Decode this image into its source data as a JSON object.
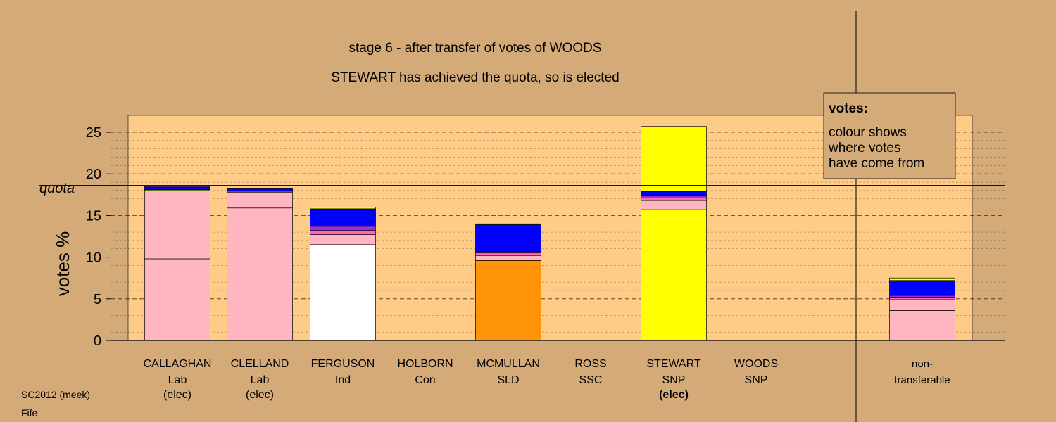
{
  "titles": {
    "line1": "stage 6 - after transfer of votes of WOODS",
    "line2": "STEWART has achieved the quota, so is elected"
  },
  "legend": {
    "heading": "votes:",
    "lines": [
      "colour shows",
      "where votes",
      "have come from"
    ]
  },
  "footer": {
    "line1": "SC2012 (meek)",
    "line2": "Fife"
  },
  "colors": {
    "background": "#D4AA78",
    "plot": "#FFCC88",
    "Lab": "#FFB6C1",
    "Ind": "#FFFFFF",
    "SLD": "#FF9408",
    "SNP": "#FFFF00",
    "Con": "#0000FF",
    "SSC": "#9932CC",
    "other": "#FF69B4"
  },
  "chart_data": {
    "type": "bar",
    "stacked": true,
    "ylabel": "votes %",
    "ylim": [
      0,
      27
    ],
    "yticks": [
      0,
      5,
      10,
      15,
      20,
      25
    ],
    "grid": "dashed",
    "quota": {
      "label": "quota",
      "value": 18.6
    },
    "categories": [
      {
        "name": "CALLAGHAN",
        "party": "Lab",
        "status": "(elec)",
        "bold": false
      },
      {
        "name": "CLELLAND",
        "party": "Lab",
        "status": "(elec)",
        "bold": false
      },
      {
        "name": "FERGUSON",
        "party": "Ind",
        "status": "",
        "bold": false
      },
      {
        "name": "HOLBORN",
        "party": "Con",
        "status": "",
        "bold": false
      },
      {
        "name": "MCMULLAN",
        "party": "SLD",
        "status": "",
        "bold": false
      },
      {
        "name": "ROSS",
        "party": "SSC",
        "status": "",
        "bold": false
      },
      {
        "name": "STEWART",
        "party": "SNP",
        "status": "(elec)",
        "bold": true
      },
      {
        "name": "WOODS",
        "party": "SNP",
        "status": "",
        "bold": false
      },
      {
        "name": "non-",
        "party": "transferable",
        "status": "",
        "bold": false
      }
    ],
    "stacks": [
      [
        {
          "v": 9.8,
          "c": "Lab"
        },
        {
          "v": 8.2,
          "c": "Lab"
        },
        {
          "v": 0.1,
          "c": "SNP"
        },
        {
          "v": 0.3,
          "c": "Con"
        },
        {
          "v": 0.1,
          "c": "SSC"
        }
      ],
      [
        {
          "v": 15.9,
          "c": "Lab"
        },
        {
          "v": 1.9,
          "c": "Lab"
        },
        {
          "v": 0.1,
          "c": "SNP"
        },
        {
          "v": 0.3,
          "c": "Con"
        },
        {
          "v": 0.1,
          "c": "SSC"
        }
      ],
      [
        {
          "v": 11.5,
          "c": "Ind"
        },
        {
          "v": 1.2,
          "c": "Lab"
        },
        {
          "v": 0.5,
          "c": "other"
        },
        {
          "v": 0.5,
          "c": "SSC"
        },
        {
          "v": 2.1,
          "c": "Con"
        },
        {
          "v": 0.2,
          "c": "SNP"
        }
      ],
      [],
      [
        {
          "v": 9.6,
          "c": "SLD"
        },
        {
          "v": 0.6,
          "c": "Lab"
        },
        {
          "v": 0.3,
          "c": "other"
        },
        {
          "v": 0.2,
          "c": "SSC"
        },
        {
          "v": 3.2,
          "c": "Con"
        },
        {
          "v": 0.1,
          "c": "SNP"
        }
      ],
      [],
      [
        {
          "v": 15.7,
          "c": "SNP"
        },
        {
          "v": 1.1,
          "c": "Lab"
        },
        {
          "v": 0.3,
          "c": "other"
        },
        {
          "v": 0.3,
          "c": "SSC"
        },
        {
          "v": 0.5,
          "c": "Con"
        },
        {
          "v": 7.8,
          "c": "SNP"
        }
      ],
      [],
      [
        {
          "v": 3.6,
          "c": "Lab"
        },
        {
          "v": 1.3,
          "c": "Lab"
        },
        {
          "v": 0.3,
          "c": "other"
        },
        {
          "v": 0.2,
          "c": "SSC"
        },
        {
          "v": 1.8,
          "c": "Con"
        },
        {
          "v": 0.3,
          "c": "SNP"
        }
      ]
    ]
  }
}
